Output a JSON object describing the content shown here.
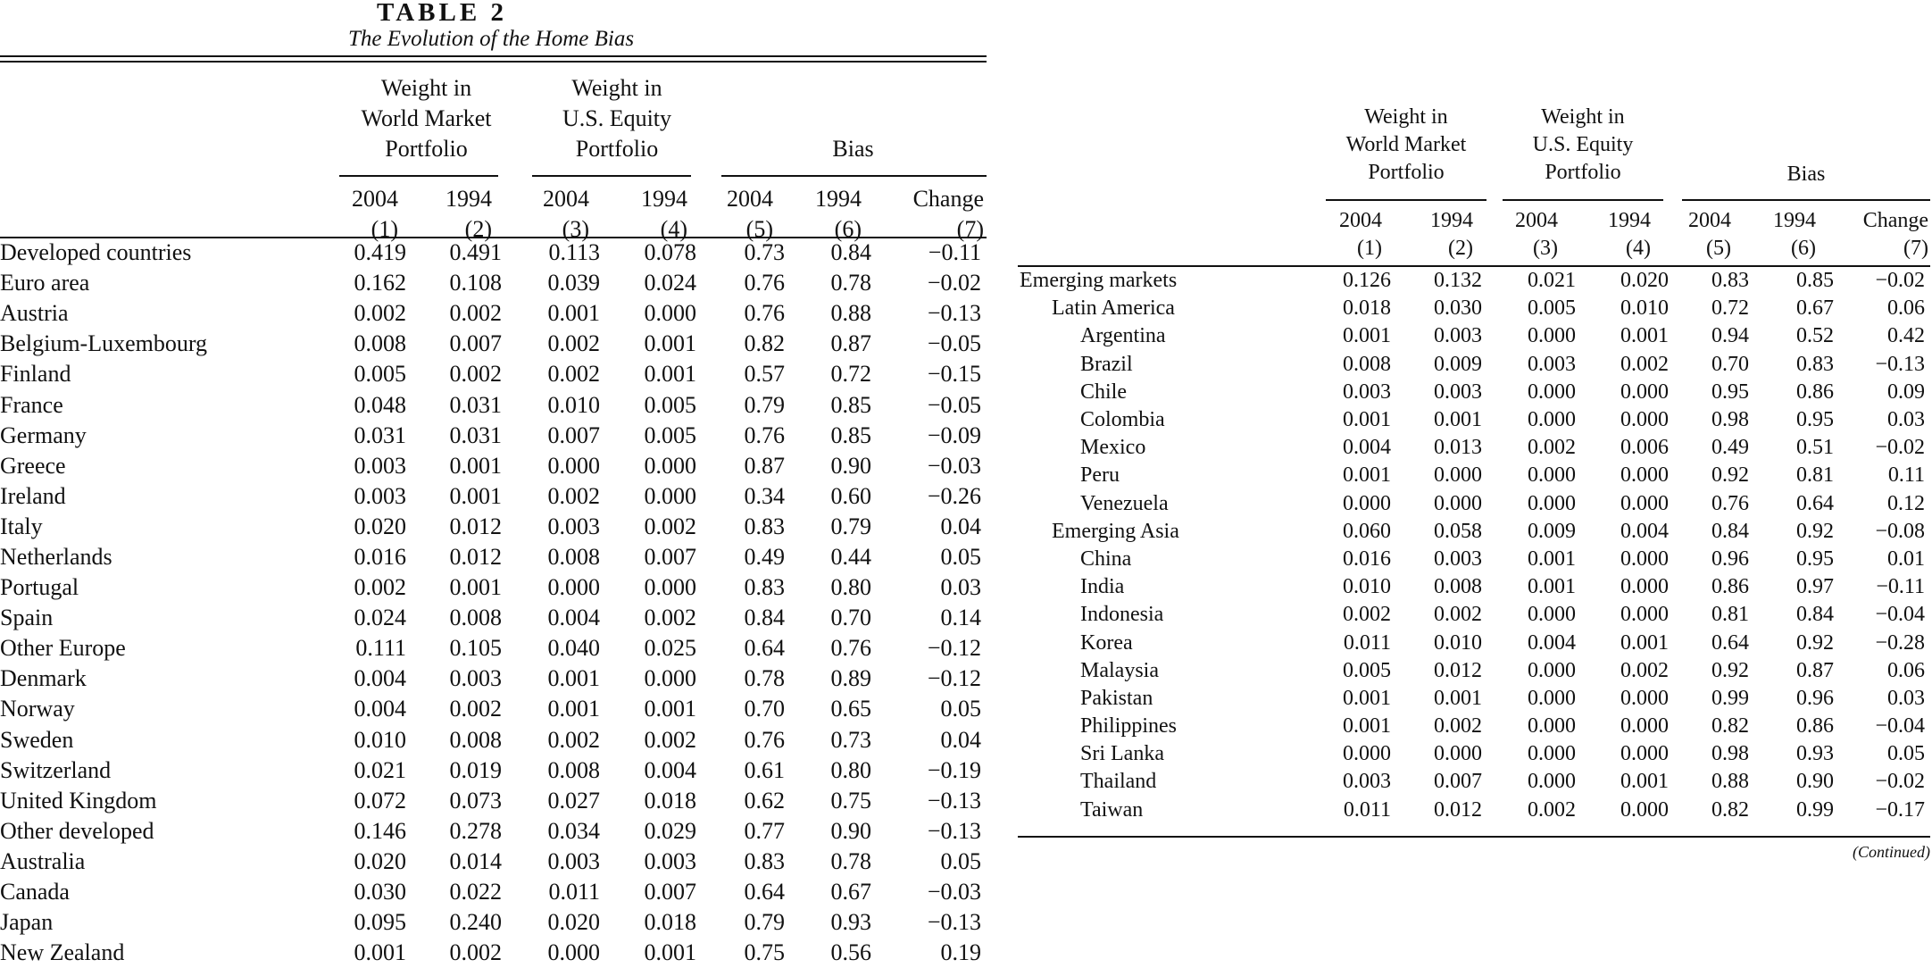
{
  "table_label": "TABLE 2",
  "table_title": "The Evolution of the Home Bias",
  "headers": {
    "group_world": [
      "Weight in",
      "World Market",
      "Portfolio"
    ],
    "group_us": [
      "Weight in",
      "U.S. Equity",
      "Portfolio"
    ],
    "group_bias": "Bias",
    "years": [
      "2004",
      "1994",
      "2004",
      "1994",
      "2004",
      "1994",
      "Change"
    ],
    "col_numbers": [
      "(1)",
      "(2)",
      "(3)",
      "(4)",
      "(5)",
      "(6)",
      "(7)"
    ]
  },
  "left_rows": [
    {
      "name": "Developed countries",
      "level": 0,
      "v": [
        "0.419",
        "0.491",
        "0.113",
        "0.078",
        "0.73",
        "0.84",
        "−0.11"
      ]
    },
    {
      "name": "Euro area",
      "level": 1,
      "v": [
        "0.162",
        "0.108",
        "0.039",
        "0.024",
        "0.76",
        "0.78",
        "−0.02"
      ]
    },
    {
      "name": "Austria",
      "level": 2,
      "v": [
        "0.002",
        "0.002",
        "0.001",
        "0.000",
        "0.76",
        "0.88",
        "−0.13"
      ]
    },
    {
      "name": "Belgium-Luxembourg",
      "level": 2,
      "v": [
        "0.008",
        "0.007",
        "0.002",
        "0.001",
        "0.82",
        "0.87",
        "−0.05"
      ]
    },
    {
      "name": "Finland",
      "level": 2,
      "v": [
        "0.005",
        "0.002",
        "0.002",
        "0.001",
        "0.57",
        "0.72",
        "−0.15"
      ]
    },
    {
      "name": "France",
      "level": 2,
      "v": [
        "0.048",
        "0.031",
        "0.010",
        "0.005",
        "0.79",
        "0.85",
        "−0.05"
      ]
    },
    {
      "name": "Germany",
      "level": 2,
      "v": [
        "0.031",
        "0.031",
        "0.007",
        "0.005",
        "0.76",
        "0.85",
        "−0.09"
      ]
    },
    {
      "name": "Greece",
      "level": 2,
      "v": [
        "0.003",
        "0.001",
        "0.000",
        "0.000",
        "0.87",
        "0.90",
        "−0.03"
      ]
    },
    {
      "name": "Ireland",
      "level": 2,
      "v": [
        "0.003",
        "0.001",
        "0.002",
        "0.000",
        "0.34",
        "0.60",
        "−0.26"
      ]
    },
    {
      "name": "Italy",
      "level": 2,
      "v": [
        "0.020",
        "0.012",
        "0.003",
        "0.002",
        "0.83",
        "0.79",
        "0.04"
      ]
    },
    {
      "name": "Netherlands",
      "level": 2,
      "v": [
        "0.016",
        "0.012",
        "0.008",
        "0.007",
        "0.49",
        "0.44",
        "0.05"
      ]
    },
    {
      "name": "Portugal",
      "level": 2,
      "v": [
        "0.002",
        "0.001",
        "0.000",
        "0.000",
        "0.83",
        "0.80",
        "0.03"
      ]
    },
    {
      "name": "Spain",
      "level": 2,
      "v": [
        "0.024",
        "0.008",
        "0.004",
        "0.002",
        "0.84",
        "0.70",
        "0.14"
      ]
    },
    {
      "name": "Other Europe",
      "level": 1,
      "v": [
        "0.111",
        "0.105",
        "0.040",
        "0.025",
        "0.64",
        "0.76",
        "−0.12"
      ]
    },
    {
      "name": "Denmark",
      "level": 2,
      "v": [
        "0.004",
        "0.003",
        "0.001",
        "0.000",
        "0.78",
        "0.89",
        "−0.12"
      ]
    },
    {
      "name": "Norway",
      "level": 2,
      "v": [
        "0.004",
        "0.002",
        "0.001",
        "0.001",
        "0.70",
        "0.65",
        "0.05"
      ]
    },
    {
      "name": "Sweden",
      "level": 2,
      "v": [
        "0.010",
        "0.008",
        "0.002",
        "0.002",
        "0.76",
        "0.73",
        "0.04"
      ]
    },
    {
      "name": "Switzerland",
      "level": 2,
      "v": [
        "0.021",
        "0.019",
        "0.008",
        "0.004",
        "0.61",
        "0.80",
        "−0.19"
      ]
    },
    {
      "name": "United Kingdom",
      "level": 2,
      "v": [
        "0.072",
        "0.073",
        "0.027",
        "0.018",
        "0.62",
        "0.75",
        "−0.13"
      ]
    },
    {
      "name": "Other developed",
      "level": 1,
      "v": [
        "0.146",
        "0.278",
        "0.034",
        "0.029",
        "0.77",
        "0.90",
        "−0.13"
      ]
    },
    {
      "name": "Australia",
      "level": 2,
      "v": [
        "0.020",
        "0.014",
        "0.003",
        "0.003",
        "0.83",
        "0.78",
        "0.05"
      ]
    },
    {
      "name": "Canada",
      "level": 2,
      "v": [
        "0.030",
        "0.022",
        "0.011",
        "0.007",
        "0.64",
        "0.67",
        "−0.03"
      ]
    },
    {
      "name": "Japan",
      "level": 2,
      "v": [
        "0.095",
        "0.240",
        "0.020",
        "0.018",
        "0.79",
        "0.93",
        "−0.13"
      ]
    },
    {
      "name": "New Zealand",
      "level": 2,
      "v": [
        "0.001",
        "0.002",
        "0.000",
        "0.001",
        "0.75",
        "0.56",
        "0.19"
      ]
    }
  ],
  "right_rows": [
    {
      "name": "Emerging markets",
      "level": 0,
      "v": [
        "0.126",
        "0.132",
        "0.021",
        "0.020",
        "0.83",
        "0.85",
        "−0.02"
      ]
    },
    {
      "name": "Latin America",
      "level": 1,
      "v": [
        "0.018",
        "0.030",
        "0.005",
        "0.010",
        "0.72",
        "0.67",
        "0.06"
      ]
    },
    {
      "name": "Argentina",
      "level": 2,
      "v": [
        "0.001",
        "0.003",
        "0.000",
        "0.001",
        "0.94",
        "0.52",
        "0.42"
      ]
    },
    {
      "name": "Brazil",
      "level": 2,
      "v": [
        "0.008",
        "0.009",
        "0.003",
        "0.002",
        "0.70",
        "0.83",
        "−0.13"
      ]
    },
    {
      "name": "Chile",
      "level": 2,
      "v": [
        "0.003",
        "0.003",
        "0.000",
        "0.000",
        "0.95",
        "0.86",
        "0.09"
      ]
    },
    {
      "name": "Colombia",
      "level": 2,
      "v": [
        "0.001",
        "0.001",
        "0.000",
        "0.000",
        "0.98",
        "0.95",
        "0.03"
      ]
    },
    {
      "name": "Mexico",
      "level": 2,
      "v": [
        "0.004",
        "0.013",
        "0.002",
        "0.006",
        "0.49",
        "0.51",
        "−0.02"
      ]
    },
    {
      "name": "Peru",
      "level": 2,
      "v": [
        "0.001",
        "0.000",
        "0.000",
        "0.000",
        "0.92",
        "0.81",
        "0.11"
      ]
    },
    {
      "name": "Venezuela",
      "level": 2,
      "v": [
        "0.000",
        "0.000",
        "0.000",
        "0.000",
        "0.76",
        "0.64",
        "0.12"
      ]
    },
    {
      "name": "Emerging Asia",
      "level": 1,
      "v": [
        "0.060",
        "0.058",
        "0.009",
        "0.004",
        "0.84",
        "0.92",
        "−0.08"
      ]
    },
    {
      "name": "China",
      "level": 2,
      "v": [
        "0.016",
        "0.003",
        "0.001",
        "0.000",
        "0.96",
        "0.95",
        "0.01"
      ]
    },
    {
      "name": "India",
      "level": 2,
      "v": [
        "0.010",
        "0.008",
        "0.001",
        "0.000",
        "0.86",
        "0.97",
        "−0.11"
      ]
    },
    {
      "name": "Indonesia",
      "level": 2,
      "v": [
        "0.002",
        "0.002",
        "0.000",
        "0.000",
        "0.81",
        "0.84",
        "−0.04"
      ]
    },
    {
      "name": "Korea",
      "level": 2,
      "v": [
        "0.011",
        "0.010",
        "0.004",
        "0.001",
        "0.64",
        "0.92",
        "−0.28"
      ]
    },
    {
      "name": "Malaysia",
      "level": 2,
      "v": [
        "0.005",
        "0.012",
        "0.000",
        "0.002",
        "0.92",
        "0.87",
        "0.06"
      ]
    },
    {
      "name": "Pakistan",
      "level": 2,
      "v": [
        "0.001",
        "0.001",
        "0.000",
        "0.000",
        "0.99",
        "0.96",
        "0.03"
      ]
    },
    {
      "name": "Philippines",
      "level": 2,
      "v": [
        "0.001",
        "0.002",
        "0.000",
        "0.000",
        "0.82",
        "0.86",
        "−0.04"
      ]
    },
    {
      "name": "Sri Lanka",
      "level": 2,
      "v": [
        "0.000",
        "0.000",
        "0.000",
        "0.000",
        "0.98",
        "0.93",
        "0.05"
      ]
    },
    {
      "name": "Thailand",
      "level": 2,
      "v": [
        "0.003",
        "0.007",
        "0.000",
        "0.001",
        "0.88",
        "0.90",
        "−0.02"
      ]
    },
    {
      "name": "Taiwan",
      "level": 2,
      "v": [
        "0.011",
        "0.012",
        "0.002",
        "0.000",
        "0.82",
        "0.99",
        "−0.17"
      ]
    }
  ],
  "continued_note": "(Continued)"
}
